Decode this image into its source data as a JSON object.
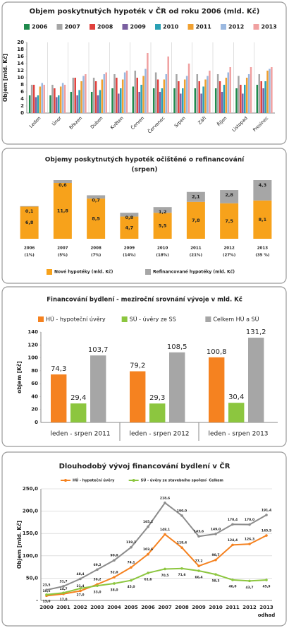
{
  "chart_data": [
    {
      "type": "bar",
      "title": "Objem poskytnutých hypoték v ČR od roku 2006 (mld. Kč)",
      "y_label": "Objem [mld. Kč]",
      "categories": [
        "Leden",
        "Únor",
        "Březen",
        "Duben",
        "Květen",
        "Červen",
        "Červenec",
        "Srpen",
        "Září",
        "Říjen",
        "Listopad",
        "Prosinec"
      ],
      "series": [
        {
          "name": "2006",
          "color": "#1f8a4c",
          "values": [
            5,
            5,
            6,
            6,
            7,
            7.5,
            7,
            7,
            7,
            7,
            7,
            8
          ]
        },
        {
          "name": "2007",
          "color": "#a6a6a6",
          "values": [
            8,
            8,
            10,
            10,
            11,
            12,
            11.5,
            11,
            11,
            11,
            10.5,
            11
          ]
        },
        {
          "name": "2008",
          "color": "#e0403c",
          "values": [
            8,
            7,
            10,
            9,
            10,
            10,
            9.5,
            9,
            9,
            9,
            8,
            9
          ]
        },
        {
          "name": "2009",
          "color": "#7a5fa0",
          "values": [
            4.5,
            4.5,
            5,
            5,
            5.5,
            6,
            6,
            5.5,
            5.5,
            6,
            5.5,
            7
          ]
        },
        {
          "name": "2010",
          "color": "#2aa0b4",
          "values": [
            5,
            5,
            6.5,
            6.5,
            7,
            8,
            7,
            7,
            7.5,
            8,
            8,
            9
          ]
        },
        {
          "name": "2011",
          "color": "#f0a030",
          "values": [
            7.5,
            7.5,
            9,
            9.5,
            9.5,
            10.5,
            9.5,
            9.5,
            9.5,
            10,
            10,
            12
          ]
        },
        {
          "name": "2012",
          "color": "#9ab8e0",
          "values": [
            8.5,
            8.5,
            10.5,
            11,
            11.5,
            12.5,
            11,
            10.5,
            10.5,
            11.5,
            11,
            12.5
          ]
        },
        {
          "name": "2013",
          "color": "#f0a0a0",
          "values": [
            8,
            8,
            11,
            11.5,
            12,
            17,
            16,
            14,
            12,
            13,
            13,
            13
          ]
        }
      ],
      "ylim": [
        0,
        20
      ],
      "yticks": [
        0,
        2,
        4,
        6,
        8,
        10,
        12,
        14,
        16,
        18,
        20
      ]
    },
    {
      "type": "stacked_bar",
      "title": "Objemy poskytnutých hypoték očištěné o refinancování",
      "subtitle": "(srpen)",
      "categories": [
        "2006",
        "2007",
        "2008",
        "2009",
        "2010",
        "2011",
        "2012",
        "2013"
      ],
      "shares": [
        "(1%)",
        "(5%)",
        "(7%)",
        "(14%)",
        "(18%)",
        "(21%)",
        "(27%)",
        "(35 %)"
      ],
      "series": [
        {
          "name": "Nové hypotéky (mld. Kč)",
          "color": "#f7a21b",
          "values": [
            6.8,
            11.8,
            8.5,
            4.7,
            5.5,
            7.8,
            7.5,
            8.1
          ],
          "value_labels": [
            "6,8",
            "11,8",
            "8,5",
            "4,7",
            "5,5",
            "7,8",
            "7,5",
            "8,1"
          ]
        },
        {
          "name": "Refinancované hypotéky (mld. Kč)",
          "color": "#a6a6a6",
          "values": [
            0.1,
            0.6,
            0.7,
            0.8,
            1.2,
            2.1,
            2.8,
            4.3
          ],
          "value_labels": [
            "0,1",
            "0,6",
            "0,7",
            "0,8",
            "1,2",
            "2,1",
            "2,8",
            "4,3"
          ]
        }
      ]
    },
    {
      "type": "bar",
      "title": "Financování bydlení - meziroční srovnání vývoje v mld. Kč",
      "y_label": "objem [Kč]",
      "categories": [
        "leden - srpen 2011",
        "leden - srpen 2012",
        "leden - srpen 2013"
      ],
      "series": [
        {
          "name": "HÚ - hypoteční úvěry",
          "color": "#f58220",
          "values": [
            74.3,
            79.2,
            100.8
          ],
          "value_labels": [
            "74,3",
            "79,2",
            "100,8"
          ]
        },
        {
          "name": "SÚ - úvěry ze SS",
          "color": "#8cc63f",
          "values": [
            29.4,
            29.3,
            30.4
          ],
          "value_labels": [
            "29,4",
            "29,3",
            "30,4"
          ]
        },
        {
          "name": "Celkem HÚ a SÚ",
          "color": "#a6a6a6",
          "values": [
            103.7,
            108.5,
            131.2
          ],
          "value_labels": [
            "103,7",
            "108,5",
            "131,2"
          ]
        }
      ],
      "ylim": [
        0,
        140
      ],
      "yticks": [
        0,
        20,
        40,
        60,
        80,
        100,
        120,
        140
      ]
    },
    {
      "type": "line",
      "title": "Dlouhodobý vývoj financování bydlení v ČR",
      "y_label": "Objem [mld. Kč]",
      "x_note": "odhad",
      "x": [
        2000,
        2001,
        2002,
        2003,
        2004,
        2005,
        2006,
        2007,
        2008,
        2009,
        2010,
        2011,
        2012,
        2013
      ],
      "series": [
        {
          "name": "HÚ - hypoteční úvěry",
          "color": "#f58220",
          "values": [
            10.5,
            14.7,
            21.4,
            36.2,
            52.0,
            74.1,
            103.6,
            148.1,
            118.4,
            77.2,
            90.7,
            124.4,
            126.3,
            145.5
          ],
          "value_labels": [
            "10,5",
            "14,7",
            "21,4",
            "36,2",
            "52,0",
            "74,1",
            "103,6",
            "148,1",
            "118,4",
            "77,2",
            "90,7",
            "124,4",
            "126,3",
            "145,5"
          ]
        },
        {
          "name": "SÚ - úvěry ze stavebního spoření",
          "color": "#8cc63f",
          "values": [
            13.0,
            17.0,
            27.0,
            33.0,
            38.0,
            45.0,
            61.6,
            70.5,
            71.6,
            66.4,
            58.3,
            46.0,
            43.7,
            45.9
          ],
          "value_labels": [
            "13,0",
            "17,0",
            "27,0",
            "33,0",
            "38,0",
            "45,0",
            "61,6",
            "70,5",
            "71,6",
            "66,4",
            "58,3",
            "46,0",
            "43,7",
            "45,9"
          ]
        },
        {
          "name": "Celkem",
          "color": "#8c8c8c",
          "values": [
            23.5,
            31.7,
            48.4,
            69.2,
            90.0,
            119.1,
            165.2,
            218.6,
            190.0,
            143.6,
            149.0,
            170.4,
            170.0,
            191.4
          ],
          "value_labels": [
            "23,5",
            "31,7",
            "48,4",
            "69,2",
            "90,0",
            "119,1",
            "165,2",
            "218,6",
            "190,0",
            "143,6",
            "149,0",
            "170,4",
            "170,0",
            "191,4"
          ]
        }
      ],
      "xlim": [
        2000,
        2013
      ],
      "ylim": [
        0,
        250
      ],
      "yticks": [
        {
          "value": 0,
          "label": "-"
        },
        {
          "value": 50,
          "label": "50,0"
        },
        {
          "value": 100,
          "label": "100,0"
        },
        {
          "value": 150,
          "label": "150,0"
        },
        {
          "value": 200,
          "label": "200,0"
        },
        {
          "value": 250,
          "label": "250,0"
        }
      ],
      "grid": true
    }
  ]
}
